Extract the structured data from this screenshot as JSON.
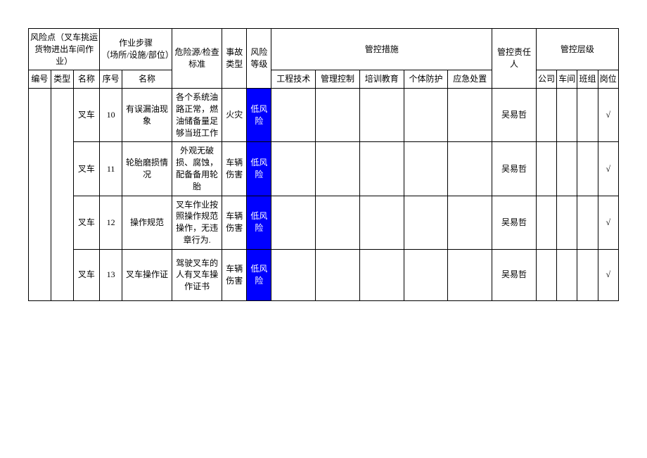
{
  "header": {
    "risk_point_group": "风险点（叉车挑运货物进出车间作业）",
    "work_step_group": "作业步骤\n（场所/设施/部位）",
    "hazard_standard": "危险源/检查标准",
    "accident_type": "事故类型",
    "risk_level": "风险等级",
    "control_measures_group": "管控措施",
    "control_person": "管控责任人",
    "control_level_group": "管控层级",
    "sub": {
      "number": "编号",
      "category": "类型",
      "name": "名称",
      "seq": "序号",
      "step_name": "名称",
      "eng_tech": "工程技术",
      "mgmt_ctrl": "管理控制",
      "training": "培训教育",
      "ppe": "个体防护",
      "emergency": "应急处置",
      "company": "公司",
      "workshop": "车间",
      "team": "班组",
      "post": "岗位"
    }
  },
  "risk_level_label": "低风险",
  "risk_level_bg": "#0000ff",
  "risk_level_fg": "#ffffff",
  "check_mark": "√",
  "rows": [
    {
      "name": "叉车",
      "seq": "10",
      "step_name": "有误漏油现象",
      "hazard": "各个系统油路正常，燃油储备量足够当班工作",
      "accident": "火灾",
      "person": "吴易哲"
    },
    {
      "name": "叉车",
      "seq": "11",
      "step_name": "轮胎磨损情况",
      "hazard": "外观无破损、腐蚀，配备备用轮胎",
      "accident": "车辆伤害",
      "person": "吴易哲"
    },
    {
      "name": "叉车",
      "seq": "12",
      "step_name": "操作规范",
      "hazard": "叉车作业按照操作规范操作，无违章行为.",
      "accident": "车辆伤害",
      "person": "吴易哲"
    },
    {
      "name": "叉车",
      "seq": "13",
      "step_name": "叉车操作证",
      "hazard": "驾驶叉车的人有叉车操作证书",
      "accident": "车辆伤害",
      "person": "吴易哲"
    }
  ],
  "colwidths_pct": [
    3.8,
    3.8,
    4.5,
    3.8,
    8.5,
    8.5,
    4.2,
    4.2,
    7.5,
    7.5,
    7.5,
    7.5,
    7.5,
    7.5,
    3.5,
    3.5,
    3.5,
    3.5
  ]
}
